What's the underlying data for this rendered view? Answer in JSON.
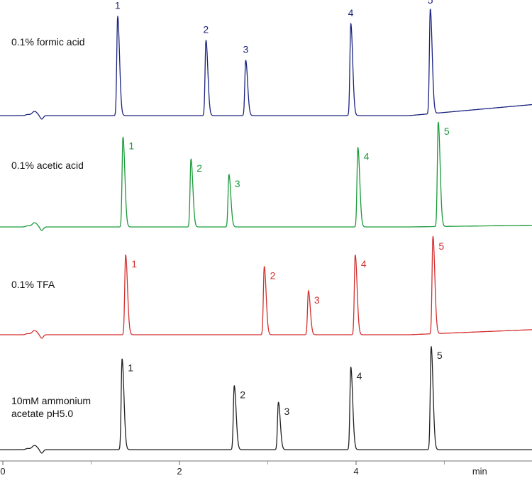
{
  "chart_data": {
    "type": "line",
    "xlabel": "min",
    "xlim": [
      0,
      6
    ],
    "x_ticks": [
      {
        "value": 0,
        "label": "0"
      },
      {
        "value": 2,
        "label": "2"
      },
      {
        "value": 4,
        "label": "4"
      },
      {
        "value": 5.4,
        "label": "min"
      }
    ],
    "minor_ticks": [
      1,
      3,
      5
    ],
    "series": [
      {
        "name": "0.1% formic acid",
        "label_lines": [
          "0.1% formic acid"
        ],
        "color": "#1a237e",
        "baseline_drift": 0.06,
        "peaks": [
          {
            "label": "1",
            "rt": 1.3,
            "height": 0.95
          },
          {
            "label": "2",
            "rt": 2.3,
            "height": 0.72
          },
          {
            "label": "3",
            "rt": 2.75,
            "height": 0.53
          },
          {
            "label": "4",
            "rt": 3.94,
            "height": 0.88
          },
          {
            "label": "5",
            "rt": 4.84,
            "height": 1.0
          }
        ]
      },
      {
        "name": "0.1% acetic acid",
        "label_lines": [
          "0.1% acetic acid"
        ],
        "color": "#1a9a3a",
        "baseline_drift": 0.01,
        "peaks": [
          {
            "label": "1",
            "rt": 1.36,
            "height": 0.86
          },
          {
            "label": "2",
            "rt": 2.13,
            "height": 0.65
          },
          {
            "label": "3",
            "rt": 2.56,
            "height": 0.5
          },
          {
            "label": "4",
            "rt": 4.02,
            "height": 0.76
          },
          {
            "label": "5",
            "rt": 4.93,
            "height": 1.0
          }
        ]
      },
      {
        "name": "0.1% TFA",
        "label_lines": [
          "0.1% TFA"
        ],
        "color": "#d32f2f",
        "baseline_drift": 0.05,
        "peaks": [
          {
            "label": "1",
            "rt": 1.39,
            "height": 0.82
          },
          {
            "label": "2",
            "rt": 2.96,
            "height": 0.7
          },
          {
            "label": "3",
            "rt": 3.46,
            "height": 0.45
          },
          {
            "label": "4",
            "rt": 3.99,
            "height": 0.82
          },
          {
            "label": "5",
            "rt": 4.87,
            "height": 1.0
          }
        ]
      },
      {
        "name": "10mM ammonium acetate pH5.0",
        "label_lines": [
          "10mM ammonium",
          "acetate pH5.0"
        ],
        "color": "#222222",
        "baseline_drift": 0.0,
        "peaks": [
          {
            "label": "1",
            "rt": 1.35,
            "height": 0.88
          },
          {
            "label": "2",
            "rt": 2.62,
            "height": 0.62
          },
          {
            "label": "3",
            "rt": 3.12,
            "height": 0.46
          },
          {
            "label": "4",
            "rt": 3.94,
            "height": 0.8
          },
          {
            "label": "5",
            "rt": 4.85,
            "height": 1.0
          }
        ]
      }
    ],
    "grid": false,
    "legend": "none"
  }
}
